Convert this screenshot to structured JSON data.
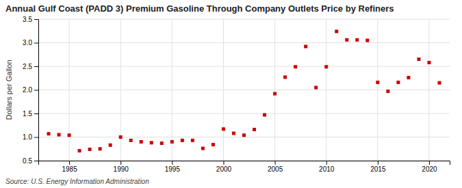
{
  "chart_data": {
    "type": "scatter",
    "title": "Annual Gulf Coast (PADD 3) Premium Gasoline Through Company Outlets Price by Refiners",
    "y_label": "Dollars per Gallon",
    "annotations": [
      "Source: U.S. Energy Information Administration"
    ],
    "color": "#cc0000",
    "marker": "square",
    "grid": true,
    "xlim": [
      1982,
      2022
    ],
    "ylim": [
      0.5,
      3.5
    ],
    "xticks": [
      1985,
      1990,
      1995,
      2000,
      2005,
      2010,
      2015,
      2020
    ],
    "yticks": [
      0.5,
      {
        "value": 1,
        "label": "1.0"
      },
      1.5,
      {
        "value": 2,
        "label": "2.0"
      },
      2.5,
      {
        "value": 3,
        "label": "3.0"
      },
      3.5
    ],
    "x": [
      1983,
      1984,
      1985,
      1986,
      1987,
      1988,
      1989,
      1990,
      1991,
      1992,
      1993,
      1994,
      1995,
      1996,
      1997,
      1998,
      1999,
      2000,
      2001,
      2002,
      2003,
      2004,
      2005,
      2006,
      2007,
      2008,
      2009,
      2010,
      2011,
      2012,
      2013,
      2014,
      2015,
      2016,
      2017,
      2018,
      2019,
      2020,
      2021
    ],
    "values": [
      1.07,
      1.05,
      1.04,
      0.71,
      0.74,
      0.75,
      0.83,
      1.0,
      0.93,
      0.9,
      0.88,
      0.87,
      0.9,
      0.93,
      0.93,
      0.76,
      0.84,
      1.17,
      1.08,
      1.04,
      1.16,
      1.47,
      1.92,
      2.27,
      2.49,
      2.92,
      2.05,
      2.49,
      3.24,
      3.06,
      3.06,
      3.05,
      2.16,
      1.97,
      2.16,
      2.26,
      2.65,
      2.58,
      2.15
    ]
  }
}
